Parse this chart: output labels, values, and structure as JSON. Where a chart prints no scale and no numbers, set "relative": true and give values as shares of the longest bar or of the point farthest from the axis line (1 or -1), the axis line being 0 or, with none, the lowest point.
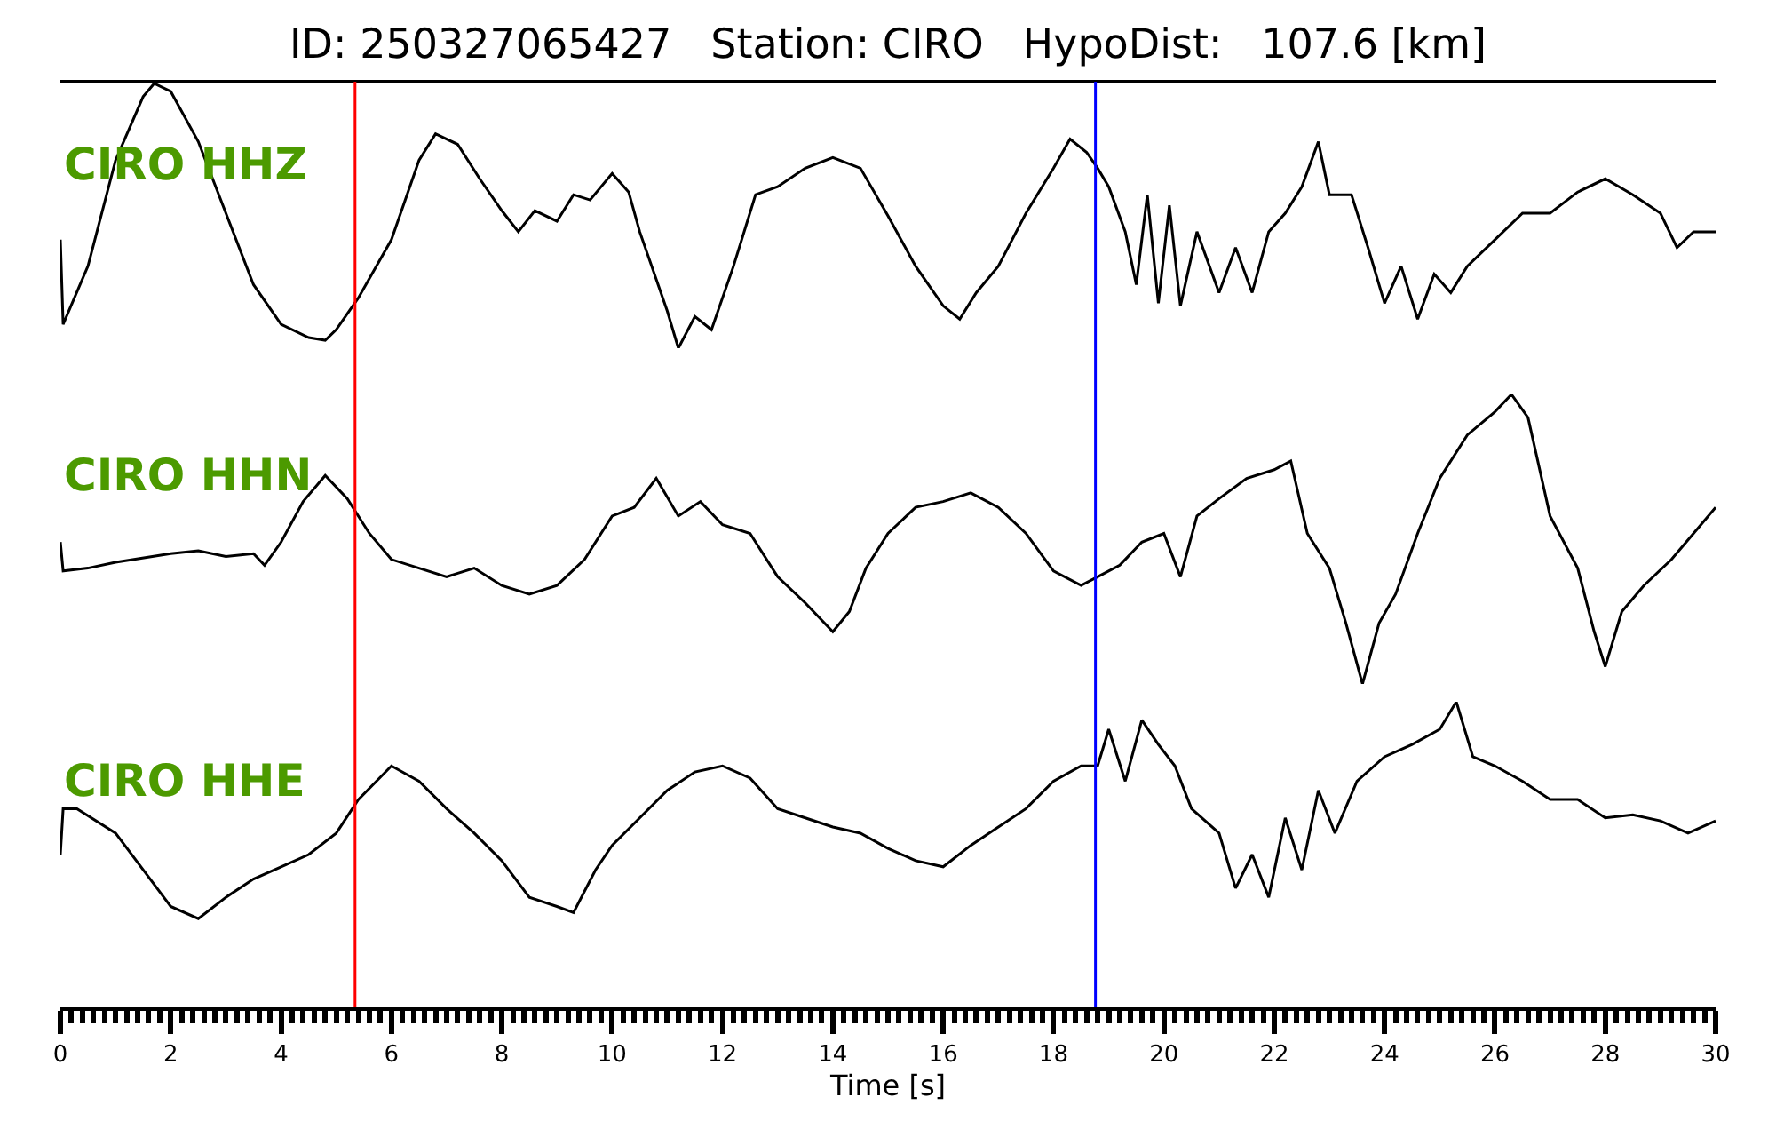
{
  "chart_data": [
    {
      "type": "line",
      "title": "ID: 250327065427   Station: CIRO   HypoDist:   107.6 [km]",
      "relative": true,
      "tick_labels": false,
      "xlim": [
        0,
        30
      ],
      "annotations": [
        "CIRO HHZ"
      ],
      "ref_lines": [
        {
          "axis": "x",
          "value": 5.34,
          "color": "#ff0000"
        },
        {
          "axis": "x",
          "value": 18.76,
          "color": "#0000ff"
        }
      ],
      "series": [
        {
          "color": "#000000",
          "x": [
            0,
            0.05,
            0.5,
            1,
            1.5,
            1.7,
            2,
            2.5,
            3,
            3.5,
            4,
            4.5,
            4.8,
            5,
            5.4,
            6,
            6.5,
            6.8,
            7.2,
            7.6,
            8,
            8.3,
            8.6,
            9,
            9.3,
            9.6,
            10,
            10.3,
            10.5,
            11,
            11.2,
            11.5,
            11.8,
            12.2,
            12.6,
            13,
            13.5,
            14,
            14.5,
            15,
            15.5,
            16,
            16.3,
            16.6,
            17,
            17.5,
            18,
            18.3,
            18.6,
            18.8,
            19,
            19.3,
            19.5,
            19.7,
            19.9,
            20.1,
            20.3,
            20.6,
            21,
            21.3,
            21.6,
            21.9,
            22.2,
            22.5,
            22.8,
            23,
            23.4,
            23.7,
            24,
            24.3,
            24.6,
            24.9,
            25.2,
            25.5,
            26,
            26.5,
            27,
            27.5,
            28,
            28.5,
            29,
            29.3,
            29.6,
            30
          ],
          "values": [
            0.41,
            0.09,
            0.31,
            0.71,
            0.95,
            1.0,
            0.97,
            0.78,
            0.51,
            0.24,
            0.09,
            0.04,
            0.03,
            0.07,
            0.19,
            0.41,
            0.71,
            0.81,
            0.77,
            0.64,
            0.52,
            0.44,
            0.52,
            0.48,
            0.58,
            0.56,
            0.66,
            0.59,
            0.44,
            0.14,
            0.0,
            0.12,
            0.07,
            0.31,
            0.58,
            0.61,
            0.68,
            0.72,
            0.68,
            0.5,
            0.31,
            0.16,
            0.11,
            0.21,
            0.31,
            0.51,
            0.68,
            0.79,
            0.74,
            0.68,
            0.61,
            0.44,
            0.24,
            0.58,
            0.17,
            0.54,
            0.16,
            0.44,
            0.21,
            0.38,
            0.21,
            0.44,
            0.51,
            0.61,
            0.78,
            0.58,
            0.58,
            0.38,
            0.17,
            0.31,
            0.11,
            0.28,
            0.21,
            0.31,
            0.41,
            0.51,
            0.51,
            0.59,
            0.64,
            0.58,
            0.51,
            0.38,
            0.44,
            0.44
          ]
        }
      ]
    },
    {
      "type": "line",
      "relative": true,
      "tick_labels": false,
      "xlim": [
        0,
        30
      ],
      "annotations": [
        "CIRO HHN"
      ],
      "ref_lines": [
        {
          "axis": "x",
          "value": 5.34,
          "color": "#ff0000"
        },
        {
          "axis": "x",
          "value": 18.76,
          "color": "#0000ff"
        }
      ],
      "series": [
        {
          "color": "#000000",
          "x": [
            0,
            0.05,
            0.5,
            1,
            2,
            2.5,
            3,
            3.5,
            3.7,
            4,
            4.4,
            4.8,
            5.2,
            5.6,
            6,
            6.5,
            7,
            7.5,
            8,
            8.5,
            9,
            9.5,
            10,
            10.4,
            10.8,
            11.2,
            11.6,
            12,
            12.5,
            13,
            13.5,
            14,
            14.3,
            14.6,
            15,
            15.5,
            16,
            16.5,
            17,
            17.5,
            18,
            18.5,
            18.8,
            19.2,
            19.6,
            20,
            20.3,
            20.6,
            21,
            21.5,
            22,
            22.3,
            22.6,
            23,
            23.3,
            23.6,
            23.9,
            24.2,
            24.6,
            25,
            25.5,
            26,
            26.3,
            26.6,
            27,
            27.5,
            27.8,
            28,
            28.3,
            28.7,
            29.2,
            29.6,
            30
          ],
          "values": [
            0.49,
            0.39,
            0.4,
            0.42,
            0.45,
            0.46,
            0.44,
            0.45,
            0.41,
            0.49,
            0.63,
            0.72,
            0.64,
            0.52,
            0.43,
            0.4,
            0.37,
            0.4,
            0.34,
            0.31,
            0.34,
            0.43,
            0.58,
            0.61,
            0.71,
            0.58,
            0.63,
            0.55,
            0.52,
            0.37,
            0.28,
            0.18,
            0.25,
            0.4,
            0.52,
            0.61,
            0.63,
            0.66,
            0.61,
            0.52,
            0.39,
            0.34,
            0.37,
            0.41,
            0.49,
            0.52,
            0.37,
            0.58,
            0.64,
            0.71,
            0.74,
            0.77,
            0.52,
            0.4,
            0.21,
            0.0,
            0.21,
            0.31,
            0.52,
            0.71,
            0.86,
            0.94,
            1.0,
            0.92,
            0.58,
            0.4,
            0.18,
            0.06,
            0.25,
            0.34,
            0.43,
            0.52,
            0.61
          ]
        }
      ]
    },
    {
      "type": "line",
      "relative": true,
      "tick_labels": "x",
      "xlim": [
        0,
        30
      ],
      "xlabel": "Time [s]",
      "annotations": [
        "CIRO HHE"
      ],
      "xticks": [
        0,
        2,
        4,
        6,
        8,
        10,
        12,
        14,
        16,
        18,
        20,
        22,
        24,
        26,
        28,
        30
      ],
      "ref_lines": [
        {
          "axis": "x",
          "value": 5.34,
          "color": "#ff0000"
        },
        {
          "axis": "x",
          "value": 18.76,
          "color": "#0000ff"
        }
      ],
      "series": [
        {
          "color": "#000000",
          "x": [
            0,
            0.05,
            0.3,
            1,
            1.5,
            2,
            2.5,
            3,
            3.5,
            4,
            4.5,
            5,
            5.4,
            6,
            6.5,
            7,
            7.5,
            8,
            8.5,
            9,
            9.3,
            9.7,
            10,
            10.5,
            11,
            11.5,
            12,
            12.5,
            13,
            13.5,
            14,
            14.5,
            15,
            15.5,
            16,
            16.5,
            17,
            17.5,
            18,
            18.5,
            18.8,
            19,
            19.3,
            19.6,
            19.9,
            20.2,
            20.5,
            21,
            21.3,
            21.6,
            21.9,
            22.2,
            22.5,
            22.8,
            23.1,
            23.5,
            24,
            24.5,
            25,
            25.3,
            25.6,
            26,
            26.5,
            27,
            27.5,
            28,
            28.5,
            29,
            29.5,
            30
          ],
          "values": [
            0.5,
            0.65,
            0.65,
            0.57,
            0.45,
            0.33,
            0.29,
            0.36,
            0.42,
            0.46,
            0.5,
            0.57,
            0.68,
            0.79,
            0.74,
            0.65,
            0.57,
            0.48,
            0.36,
            0.33,
            0.31,
            0.45,
            0.53,
            0.62,
            0.71,
            0.77,
            0.79,
            0.75,
            0.65,
            0.62,
            0.59,
            0.57,
            0.52,
            0.48,
            0.46,
            0.53,
            0.59,
            0.65,
            0.74,
            0.79,
            0.79,
            0.91,
            0.74,
            0.94,
            0.86,
            0.79,
            0.65,
            0.57,
            0.39,
            0.5,
            0.36,
            0.62,
            0.45,
            0.71,
            0.57,
            0.74,
            0.82,
            0.86,
            0.91,
            1.0,
            0.82,
            0.79,
            0.74,
            0.68,
            0.68,
            0.62,
            0.63,
            0.61,
            0.57,
            0.61
          ]
        }
      ]
    }
  ]
}
